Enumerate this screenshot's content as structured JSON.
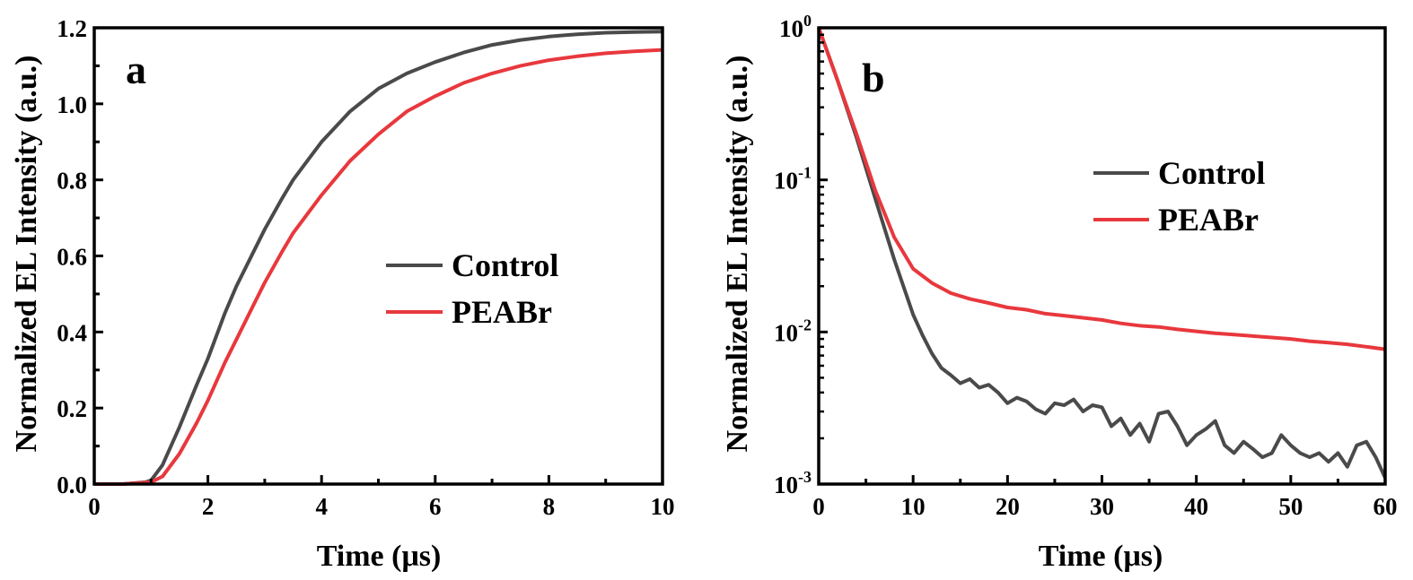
{
  "chart_data": [
    {
      "type": "line",
      "panel_label": "a",
      "xlabel": "Time (μs)",
      "ylabel": "Normalized EL Intensity (a.u.)",
      "xlim": [
        0,
        10
      ],
      "ylim": [
        0,
        1.2
      ],
      "x_scale": "linear",
      "y_scale": "linear",
      "xticks": [
        0,
        2,
        4,
        6,
        8,
        10
      ],
      "yticks": [
        0.0,
        0.2,
        0.4,
        0.6,
        0.8,
        1.0,
        1.2
      ],
      "xtick_labels": [
        "0",
        "2",
        "4",
        "6",
        "8",
        "10"
      ],
      "ytick_labels": [
        "0.0",
        "0.2",
        "0.4",
        "0.6",
        "0.8",
        "1.0",
        "1.2"
      ],
      "legend_position": "center-right",
      "grid": false,
      "series": [
        {
          "name": "Control",
          "color": "#4a4a4a",
          "x": [
            0,
            0.5,
            0.9,
            1.0,
            1.2,
            1.5,
            1.8,
            2.0,
            2.3,
            2.5,
            2.8,
            3.0,
            3.3,
            3.5,
            3.8,
            4.0,
            4.5,
            5.0,
            5.5,
            6.0,
            6.5,
            7.0,
            7.5,
            8.0,
            8.5,
            9.0,
            9.5,
            10.0
          ],
          "y": [
            0.0,
            0.0,
            0.005,
            0.01,
            0.05,
            0.15,
            0.26,
            0.33,
            0.45,
            0.52,
            0.61,
            0.67,
            0.75,
            0.8,
            0.86,
            0.9,
            0.98,
            1.04,
            1.08,
            1.11,
            1.135,
            1.155,
            1.168,
            1.177,
            1.183,
            1.187,
            1.189,
            1.19
          ]
        },
        {
          "name": "PEABr",
          "color": "#e8383d",
          "x": [
            0,
            0.5,
            1.0,
            1.2,
            1.5,
            1.8,
            2.0,
            2.3,
            2.5,
            2.8,
            3.0,
            3.3,
            3.5,
            3.8,
            4.0,
            4.5,
            5.0,
            5.5,
            6.0,
            6.5,
            7.0,
            7.5,
            8.0,
            8.5,
            9.0,
            9.5,
            10.0
          ],
          "y": [
            0.0,
            0.0,
            0.005,
            0.02,
            0.08,
            0.16,
            0.22,
            0.32,
            0.38,
            0.47,
            0.53,
            0.61,
            0.66,
            0.72,
            0.76,
            0.85,
            0.92,
            0.98,
            1.02,
            1.055,
            1.08,
            1.1,
            1.115,
            1.125,
            1.133,
            1.138,
            1.142
          ]
        }
      ]
    },
    {
      "type": "line",
      "panel_label": "b",
      "xlabel": "Time (μs)",
      "ylabel": "Normalized EL Intensity (a.u.)",
      "xlim": [
        0,
        60
      ],
      "ylim": [
        0.001,
        1
      ],
      "x_scale": "linear",
      "y_scale": "log",
      "xticks": [
        0,
        10,
        20,
        30,
        40,
        50,
        60
      ],
      "xtick_labels": [
        "0",
        "10",
        "20",
        "30",
        "40",
        "50",
        "60"
      ],
      "yticks": [
        1,
        0.1,
        0.01,
        0.001
      ],
      "ytick_labels": [
        {
          "base": "10",
          "exp": "0"
        },
        {
          "base": "10",
          "exp": "-1"
        },
        {
          "base": "10",
          "exp": "-2"
        },
        {
          "base": "10",
          "exp": "-3"
        }
      ],
      "legend_position": "top-right",
      "grid": false,
      "series": [
        {
          "name": "Control",
          "color": "#4a4a4a",
          "x": [
            0,
            2,
            4,
            6,
            8,
            10,
            11,
            12,
            13,
            14,
            15,
            16,
            17,
            18,
            19,
            20,
            21,
            22,
            23,
            24,
            25,
            26,
            27,
            28,
            29,
            30,
            31,
            32,
            33,
            34,
            35,
            36,
            37,
            38,
            39,
            40,
            41,
            42,
            43,
            44,
            45,
            46,
            47,
            48,
            49,
            50,
            51,
            52,
            53,
            54,
            55,
            56,
            57,
            58,
            59,
            60
          ],
          "y": [
            1.0,
            0.45,
            0.19,
            0.075,
            0.03,
            0.013,
            0.0095,
            0.0072,
            0.0058,
            0.0052,
            0.0046,
            0.0049,
            0.0043,
            0.0045,
            0.004,
            0.0034,
            0.0037,
            0.0035,
            0.0031,
            0.0029,
            0.0034,
            0.0033,
            0.0036,
            0.003,
            0.0033,
            0.0032,
            0.0024,
            0.0027,
            0.0021,
            0.0025,
            0.0019,
            0.0029,
            0.003,
            0.0024,
            0.0018,
            0.0021,
            0.0023,
            0.0026,
            0.0018,
            0.0016,
            0.0019,
            0.0017,
            0.0015,
            0.0016,
            0.0021,
            0.0018,
            0.0016,
            0.0015,
            0.0016,
            0.0014,
            0.0016,
            0.0013,
            0.0018,
            0.0019,
            0.0015,
            0.0011
          ]
        },
        {
          "name": "PEABr",
          "color": "#e8383d",
          "x": [
            0,
            2,
            4,
            6,
            8,
            10,
            12,
            14,
            16,
            18,
            20,
            22,
            24,
            26,
            28,
            30,
            32,
            34,
            36,
            38,
            40,
            42,
            44,
            46,
            48,
            50,
            52,
            54,
            56,
            58,
            60
          ],
          "y": [
            1.0,
            0.45,
            0.2,
            0.085,
            0.042,
            0.026,
            0.021,
            0.018,
            0.0165,
            0.0155,
            0.0145,
            0.014,
            0.0132,
            0.0128,
            0.0124,
            0.012,
            0.0114,
            0.011,
            0.0108,
            0.0104,
            0.0101,
            0.0098,
            0.0096,
            0.0094,
            0.0092,
            0.009,
            0.0087,
            0.0085,
            0.0083,
            0.008,
            0.0077
          ]
        }
      ]
    }
  ]
}
